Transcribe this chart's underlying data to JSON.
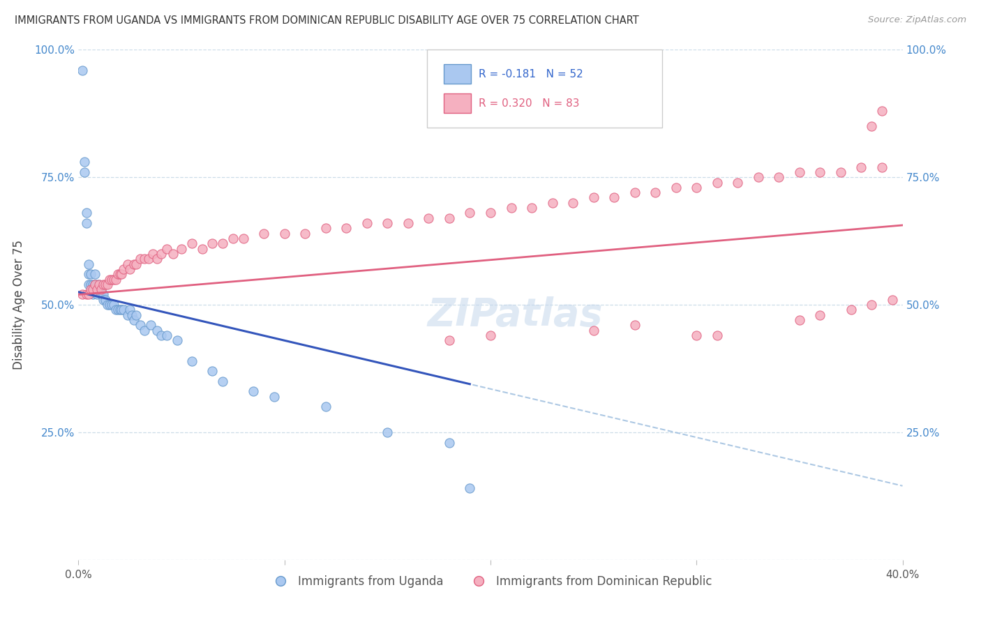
{
  "title": "IMMIGRANTS FROM UGANDA VS IMMIGRANTS FROM DOMINICAN REPUBLIC DISABILITY AGE OVER 75 CORRELATION CHART",
  "source": "Source: ZipAtlas.com",
  "label_uganda": "Immigrants from Uganda",
  "label_dr": "Immigrants from Dominican Republic",
  "ylabel": "Disability Age Over 75",
  "x_min": 0.0,
  "x_max": 0.4,
  "y_min": 0.0,
  "y_max": 1.0,
  "uganda_color": "#aac8f0",
  "uganda_edge_color": "#6699cc",
  "dr_color": "#f5b0c0",
  "dr_edge_color": "#e06080",
  "uganda_line_color": "#3355bb",
  "dr_line_color": "#e06080",
  "dashed_line_color": "#99bbdd",
  "legend_text_uganda": "R = -0.181   N = 52",
  "legend_text_dr": "R = 0.320   N = 83",
  "watermark": "ZIPatlas",
  "uganda_x": [
    0.002,
    0.003,
    0.003,
    0.004,
    0.004,
    0.005,
    0.005,
    0.005,
    0.006,
    0.006,
    0.007,
    0.007,
    0.008,
    0.008,
    0.009,
    0.009,
    0.01,
    0.01,
    0.011,
    0.012,
    0.012,
    0.013,
    0.014,
    0.015,
    0.016,
    0.017,
    0.018,
    0.019,
    0.02,
    0.021,
    0.022,
    0.024,
    0.025,
    0.026,
    0.027,
    0.028,
    0.03,
    0.032,
    0.035,
    0.038,
    0.04,
    0.043,
    0.048,
    0.055,
    0.065,
    0.07,
    0.085,
    0.095,
    0.12,
    0.15,
    0.18,
    0.19
  ],
  "uganda_y": [
    0.96,
    0.78,
    0.76,
    0.68,
    0.66,
    0.58,
    0.56,
    0.54,
    0.56,
    0.54,
    0.54,
    0.52,
    0.54,
    0.56,
    0.54,
    0.52,
    0.54,
    0.53,
    0.52,
    0.52,
    0.51,
    0.51,
    0.5,
    0.5,
    0.5,
    0.5,
    0.49,
    0.49,
    0.49,
    0.49,
    0.49,
    0.48,
    0.49,
    0.48,
    0.47,
    0.48,
    0.46,
    0.45,
    0.46,
    0.45,
    0.44,
    0.44,
    0.43,
    0.39,
    0.37,
    0.35,
    0.33,
    0.32,
    0.3,
    0.25,
    0.23,
    0.14
  ],
  "dr_x": [
    0.002,
    0.004,
    0.005,
    0.006,
    0.007,
    0.008,
    0.009,
    0.01,
    0.011,
    0.012,
    0.013,
    0.014,
    0.015,
    0.016,
    0.017,
    0.018,
    0.019,
    0.02,
    0.021,
    0.022,
    0.024,
    0.025,
    0.027,
    0.028,
    0.03,
    0.032,
    0.034,
    0.036,
    0.038,
    0.04,
    0.043,
    0.046,
    0.05,
    0.055,
    0.06,
    0.065,
    0.07,
    0.075,
    0.08,
    0.09,
    0.1,
    0.11,
    0.12,
    0.13,
    0.14,
    0.15,
    0.16,
    0.17,
    0.18,
    0.19,
    0.2,
    0.21,
    0.22,
    0.23,
    0.24,
    0.25,
    0.26,
    0.27,
    0.28,
    0.29,
    0.3,
    0.31,
    0.32,
    0.33,
    0.34,
    0.35,
    0.36,
    0.37,
    0.38,
    0.39,
    0.3,
    0.31,
    0.18,
    0.2,
    0.25,
    0.27,
    0.35,
    0.36,
    0.375,
    0.385,
    0.395,
    0.39,
    0.385
  ],
  "dr_y": [
    0.52,
    0.52,
    0.52,
    0.53,
    0.53,
    0.54,
    0.53,
    0.54,
    0.53,
    0.54,
    0.54,
    0.54,
    0.55,
    0.55,
    0.55,
    0.55,
    0.56,
    0.56,
    0.56,
    0.57,
    0.58,
    0.57,
    0.58,
    0.58,
    0.59,
    0.59,
    0.59,
    0.6,
    0.59,
    0.6,
    0.61,
    0.6,
    0.61,
    0.62,
    0.61,
    0.62,
    0.62,
    0.63,
    0.63,
    0.64,
    0.64,
    0.64,
    0.65,
    0.65,
    0.66,
    0.66,
    0.66,
    0.67,
    0.67,
    0.68,
    0.68,
    0.69,
    0.69,
    0.7,
    0.7,
    0.71,
    0.71,
    0.72,
    0.72,
    0.73,
    0.73,
    0.74,
    0.74,
    0.75,
    0.75,
    0.76,
    0.76,
    0.76,
    0.77,
    0.77,
    0.44,
    0.44,
    0.43,
    0.44,
    0.45,
    0.46,
    0.47,
    0.48,
    0.49,
    0.5,
    0.51,
    0.88,
    0.85
  ]
}
